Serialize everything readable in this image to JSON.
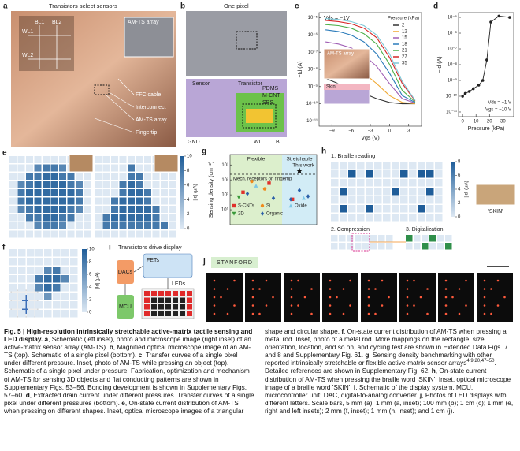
{
  "panels": {
    "a": {
      "label": "a",
      "title": "Transistors select sensors",
      "schematic": [
        "WL1",
        "BL1",
        "BL2",
        "WL2"
      ],
      "inset": "AM-TS array",
      "callouts": [
        "FFC cable",
        "Interconnect",
        "AM-TS array",
        "Fingertip"
      ]
    },
    "b": {
      "label": "b",
      "title": "One pixel",
      "parts": [
        "Sensor",
        "Transistor"
      ],
      "layers": [
        "PDMS",
        "M-CNT",
        "SBS"
      ],
      "terminals": [
        "GND",
        "WL",
        "BL"
      ]
    },
    "i": {
      "label": "i",
      "title": "Transistors drive display",
      "blocks": [
        "DACs",
        "FETs",
        "LEDs",
        "MCU"
      ]
    },
    "j": {
      "label": "j",
      "word": "STANFORD"
    }
  },
  "chart_data": [
    {
      "panel": "c",
      "type": "line",
      "y_log": true,
      "x_label": "Vgs (V)",
      "y_label": "−Id (A)",
      "annotation": "Vds = −1V",
      "inset_labels": [
        "AM-TS array",
        "Skin"
      ],
      "legend_title": "Pressure (kPa)",
      "x": [
        -10,
        -8,
        -6,
        -4,
        -2,
        0,
        2,
        4
      ],
      "series": [
        {
          "name": "2",
          "color": "#333333",
          "values": [
            3e-09,
            1.5e-09,
            8e-10,
            4e-10,
            2e-10,
            1.2e-10,
            1e-10,
            1e-10
          ]
        },
        {
          "name": "12",
          "color": "#f0a830",
          "values": [
            5e-08,
            3e-08,
            1.5e-08,
            6e-09,
            1.5e-09,
            3e-10,
            1.2e-10,
            1e-10
          ]
        },
        {
          "name": "15",
          "color": "#a05fb5",
          "values": [
            4e-07,
            3e-07,
            1.8e-07,
            7e-08,
            1.5e-08,
            1.5e-09,
            2e-10,
            1.1e-10
          ]
        },
        {
          "name": "18",
          "color": "#2b7bba",
          "values": [
            2e-06,
            1.6e-06,
            1e-06,
            4e-07,
            8e-08,
            6e-09,
            3e-10,
            1.2e-10
          ]
        },
        {
          "name": "21",
          "color": "#4daf4a",
          "values": [
            4e-06,
            3.5e-06,
            2.5e-06,
            1.2e-06,
            3e-07,
            2e-08,
            6e-10,
            1.3e-10
          ]
        },
        {
          "name": "27",
          "color": "#d62728",
          "values": [
            7e-06,
            6e-06,
            4.5e-06,
            2.5e-06,
            7e-07,
            5e-08,
            1.5e-09,
            1.5e-10
          ]
        },
        {
          "name": "35",
          "color": "#7fc8d8",
          "values": [
            9e-06,
            8e-06,
            6e-06,
            3.5e-06,
            1e-06,
            8e-08,
            2e-09,
            1.6e-10
          ]
        }
      ],
      "xlim": [
        -11,
        5
      ],
      "xticks": [
        {
          "value": -9,
          "label": "−9"
        },
        {
          "value": -6,
          "label": "−6"
        },
        {
          "value": -3,
          "label": "−3"
        },
        0,
        3
      ],
      "ylim": [
        5e-12,
        2e-05
      ],
      "yticks": [
        {
          "value": 1e-11,
          "label": "10⁻¹¹"
        },
        {
          "value": 1e-10,
          "label": "10⁻¹⁰"
        },
        {
          "value": 1e-09,
          "label": "10⁻⁹"
        },
        {
          "value": 1e-08,
          "label": "10⁻⁸"
        },
        {
          "value": 1e-07,
          "label": "10⁻⁷"
        },
        {
          "value": 1e-06,
          "label": "10⁻⁶"
        },
        {
          "value": 1e-05,
          "label": "10⁻⁵"
        }
      ]
    },
    {
      "panel": "d",
      "type": "scatter_line",
      "y_log": true,
      "x_label": "Pressure (kPa)",
      "y_label": "−Id (A)",
      "annotations": [
        "Vds = −1 V",
        "Vgs = −10 V"
      ],
      "color": "#222222",
      "x": [
        0,
        2,
        5,
        8,
        12,
        15,
        18,
        21,
        27,
        35
      ],
      "values": [
        1e-10,
        1.5e-10,
        2e-10,
        3e-10,
        5e-10,
        1e-09,
        2e-08,
        5e-06,
        1.2e-05,
        1e-05
      ],
      "xlim": [
        -3,
        38
      ],
      "xticks": [
        0,
        10,
        20,
        30
      ],
      "ylim": [
        5e-12,
        2e-05
      ],
      "yticks": [
        {
          "value": 1e-11,
          "label": "10⁻¹¹"
        },
        {
          "value": 1e-10,
          "label": "10⁻¹⁰"
        },
        {
          "value": 1e-09,
          "label": "10⁻⁹"
        },
        {
          "value": 1e-08,
          "label": "10⁻⁸"
        },
        {
          "value": 1e-07,
          "label": "10⁻⁷"
        },
        {
          "value": 1e-06,
          "label": "10⁻⁶"
        },
        {
          "value": 1e-05,
          "label": "10⁻⁵"
        }
      ]
    },
    {
      "panel": "e",
      "type": "heatmap",
      "colors": [
        "#dde8f3",
        "#1f5d99"
      ],
      "vlim": [
        0,
        10
      ],
      "cbar_ticks": [
        0,
        2,
        4,
        6,
        8,
        10
      ],
      "cbar_label": "|Id| (μA)",
      "maps": [
        [
          [
            0,
            0,
            0,
            0,
            0,
            0,
            0,
            0,
            0,
            0
          ],
          [
            0,
            0,
            0,
            7,
            8,
            8,
            7,
            0,
            0,
            0
          ],
          [
            0,
            0,
            8,
            8,
            9,
            9,
            8,
            8,
            0,
            0
          ],
          [
            0,
            7,
            8,
            9,
            9,
            9,
            9,
            8,
            7,
            0
          ],
          [
            0,
            8,
            9,
            9,
            9,
            9,
            9,
            9,
            8,
            0
          ],
          [
            0,
            8,
            9,
            9,
            9,
            9,
            9,
            9,
            8,
            0
          ],
          [
            0,
            7,
            8,
            9,
            9,
            9,
            9,
            8,
            7,
            0
          ],
          [
            0,
            0,
            8,
            8,
            9,
            9,
            8,
            8,
            0,
            0
          ],
          [
            0,
            0,
            0,
            7,
            8,
            8,
            7,
            0,
            0,
            0
          ],
          [
            0,
            0,
            0,
            0,
            0,
            0,
            0,
            0,
            0,
            0
          ]
        ],
        [
          [
            0,
            0,
            0,
            0,
            0,
            0,
            0,
            0,
            0,
            0
          ],
          [
            0,
            0,
            0,
            0,
            8,
            0,
            0,
            0,
            0,
            0
          ],
          [
            0,
            0,
            0,
            0,
            8,
            8,
            0,
            0,
            0,
            0
          ],
          [
            0,
            0,
            0,
            8,
            9,
            8,
            0,
            0,
            0,
            0
          ],
          [
            0,
            0,
            0,
            8,
            9,
            9,
            8,
            0,
            0,
            0
          ],
          [
            0,
            0,
            8,
            9,
            9,
            9,
            8,
            0,
            0,
            0
          ],
          [
            0,
            0,
            8,
            9,
            9,
            9,
            9,
            8,
            0,
            0
          ],
          [
            0,
            8,
            9,
            9,
            9,
            9,
            9,
            8,
            0,
            0
          ],
          [
            0,
            8,
            8,
            8,
            8,
            8,
            8,
            8,
            8,
            0
          ],
          [
            0,
            0,
            0,
            0,
            0,
            0,
            0,
            0,
            0,
            0
          ]
        ]
      ]
    },
    {
      "panel": "f",
      "type": "heatmap",
      "colors": [
        "#dde8f3",
        "#1f5d99"
      ],
      "vlim": [
        0,
        10
      ],
      "cbar_ticks": [
        0,
        2,
        4,
        6,
        8,
        10
      ],
      "cbar_label": "|Id| (μA)",
      "maps": [
        [
          [
            0,
            0,
            0,
            0,
            0,
            0,
            0,
            0
          ],
          [
            0,
            0,
            0,
            0,
            0,
            0,
            0,
            0
          ],
          [
            0,
            0,
            0,
            0,
            7,
            8,
            0,
            0
          ],
          [
            0,
            0,
            0,
            8,
            9,
            9,
            7,
            0
          ],
          [
            0,
            0,
            0,
            7,
            9,
            8,
            0,
            0
          ],
          [
            0,
            0,
            0,
            0,
            6,
            0,
            0,
            0
          ],
          [
            0,
            0,
            0,
            0,
            0,
            0,
            0,
            0
          ],
          [
            0,
            0,
            0,
            0,
            0,
            0,
            0,
            0
          ]
        ]
      ]
    },
    {
      "panel": "g",
      "type": "scatter",
      "y_log": true,
      "y_label": "Sensing density (cm⁻²)",
      "xlim": [
        0,
        10
      ],
      "ylim": [
        0.1,
        5000
      ],
      "yticks": [
        {
          "value": 1,
          "label": "10⁰"
        },
        {
          "value": 10,
          "label": "10¹"
        },
        {
          "value": 100,
          "label": "10²"
        },
        {
          "value": 1000,
          "label": "10³"
        }
      ],
      "regions": [
        {
          "name": "Flexible",
          "xlim": [
            0,
            6
          ],
          "color": "#dcefcc"
        },
        {
          "name": "Stretchable",
          "xlim": [
            6,
            10
          ],
          "color": "#d2ecf6"
        }
      ],
      "hline": {
        "value": 240,
        "label": "Mech. receptors on fingertip"
      },
      "this_work": {
        "x": 8,
        "value": 400,
        "label": "This work"
      },
      "series": [
        {
          "name": "S-CNTs",
          "color": "#e0302a",
          "marker": "square",
          "x": [
            1.5,
            4.5,
            7.2
          ],
          "values": [
            15,
            60,
            5
          ]
        },
        {
          "name": "Si",
          "color": "#f08a1c",
          "marker": "circle",
          "x": [
            2.5,
            4.0
          ],
          "values": [
            80,
            25
          ]
        },
        {
          "name": "Oxide",
          "color": "#7cc6e6",
          "marker": "triangle",
          "x": [
            3.0,
            8.5
          ],
          "values": [
            40,
            6
          ]
        },
        {
          "name": "2D",
          "color": "#3a9a3a",
          "marker": "triangle-down",
          "x": [
            1.0
          ],
          "values": [
            7
          ]
        },
        {
          "name": "Organic",
          "color": "#2b5fa8",
          "marker": "diamond",
          "x": [
            2.0,
            5.0,
            7.0,
            8.0,
            9.0
          ],
          "values": [
            12,
            6,
            5,
            20,
            8
          ]
        }
      ]
    },
    {
      "panel": "h",
      "type": "heatmap",
      "colors": [
        "#dde8f3",
        "#1f5d99"
      ],
      "vlim": [
        0,
        8
      ],
      "cbar_ticks": [
        0,
        2,
        4,
        6,
        8
      ],
      "cbar_label": "|Id| (μA)",
      "steps": [
        "1. Braille reading",
        "2. Compression",
        "3. Digitalization"
      ],
      "inset_label": "'SKIN'",
      "maps": [
        [
          [
            0,
            0,
            0,
            0,
            0,
            0,
            0,
            0,
            0,
            0,
            0,
            0,
            0
          ],
          [
            0,
            0,
            8,
            0,
            8,
            0,
            0,
            0,
            8,
            0,
            8,
            8,
            0
          ],
          [
            0,
            0,
            0,
            0,
            0,
            0,
            0,
            0,
            0,
            0,
            0,
            0,
            0
          ],
          [
            0,
            8,
            0,
            0,
            0,
            0,
            0,
            8,
            0,
            0,
            0,
            8,
            0
          ],
          [
            0,
            0,
            0,
            0,
            0,
            0,
            0,
            0,
            0,
            0,
            0,
            0,
            0
          ],
          [
            0,
            8,
            0,
            0,
            8,
            0,
            0,
            0,
            0,
            0,
            8,
            0,
            0
          ],
          [
            0,
            0,
            0,
            0,
            0,
            0,
            0,
            0,
            0,
            0,
            0,
            0,
            0
          ]
        ]
      ]
    }
  ],
  "caption": [
    {
      "bold": "Fig. 5 | High-resolution intrinsically stretchable active-matrix tactile sensing and LED display. a"
    },
    {
      "text": ", Schematic (left inset), photo and microscope image (right inset) of an active-matrix sensor array (AM-TS). "
    },
    {
      "bold": "b"
    },
    {
      "text": ", Magnified optical microscope image of an AM-TS (top). Schematic of a single pixel (bottom). "
    },
    {
      "bold": "c"
    },
    {
      "text": ", Transfer curves of a single pixel under different pressure. Inset, photo of AM-TS while pressing an object (top). Schematic of a single pixel under pressure. Fabrication, optimization and mechanism of AM-TS for sensing 3D objects and flat conducting patterns are shown in Supplementary Figs. 53–56. Bonding development is shown in Supplementary Figs. 57–60. "
    },
    {
      "bold": "d"
    },
    {
      "text": ", Extracted drain current under different pressures. Transfer curves of a single pixel under different pressures (bottom). "
    },
    {
      "bold": "e"
    },
    {
      "text": ", On-state current distribution of AM-TS when pressing on different shapes. Inset, optical microscope images of a triangular shape and circular shape. "
    },
    {
      "bold": "f"
    },
    {
      "text": ", On-state current distribution of AM-TS when pressing a metal rod. Inset, photo of a metal rod. More mappings on the rectangle, size, orientation, location, and so on, and cycling test are shown in Extended Data Figs. 7 and 8 and Supplementary Fig. 61. "
    },
    {
      "bold": "g"
    },
    {
      "text": ", Sensing density benchmarking with other reported intrinsically stretchable or flexible active-matrix sensor arrays"
    },
    {
      "sup": "4,9,20,47–50"
    },
    {
      "text": ". Detailed references are shown in Supplementary Fig. 62. "
    },
    {
      "bold": "h"
    },
    {
      "text": ", On-state current distribution of AM-TS when pressing the braille word 'SKIN'. Inset, optical microscope image of a braille word 'SKIN'. "
    },
    {
      "bold": "i"
    },
    {
      "text": ", Schematic of the display system. MCU, microcontroller unit; DAC, digital-to-analog converter. "
    },
    {
      "bold": "j"
    },
    {
      "text": ", Photos of LED displays with different letters. Scale bars, 5 mm (a); 1 mm (a, inset); 100 mm (b); 1 cm (c); 1 mm (e, right and left insets); 2 mm (f, inset); 1 mm (h, inset); and 1 cm (j)."
    }
  ]
}
